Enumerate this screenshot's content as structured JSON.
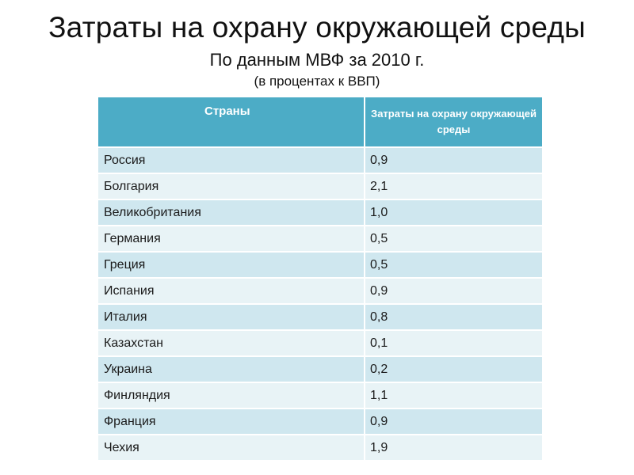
{
  "header": {
    "title": "Затраты на охрану окружающей среды",
    "subtitle": "По данным МВФ за 2010 г.",
    "note": "(в процентах к ВВП)"
  },
  "table": {
    "columns": [
      "Страны",
      "Затраты на охрану окружающей среды"
    ],
    "rows": [
      {
        "country": "Россия",
        "value": "0,9"
      },
      {
        "country": "Болгария",
        "value": "2,1"
      },
      {
        "country": "Великобритания",
        "value": "1,0"
      },
      {
        "country": "Германия",
        "value": "0,5"
      },
      {
        "country": "Греция",
        "value": "0,5"
      },
      {
        "country": "Испания",
        "value": "0,9"
      },
      {
        "country": "Италия",
        "value": "0,8"
      },
      {
        "country": "Казахстан",
        "value": "0,1"
      },
      {
        "country": "Украина",
        "value": "0,2"
      },
      {
        "country": "Финляндия",
        "value": "1,1"
      },
      {
        "country": "Франция",
        "value": "0,9"
      },
      {
        "country": "Чехия",
        "value": "1,9"
      }
    ]
  },
  "colors": {
    "header_bg": "#4cacc6",
    "row_odd": "#cfe7ef",
    "row_even": "#e8f3f6"
  }
}
